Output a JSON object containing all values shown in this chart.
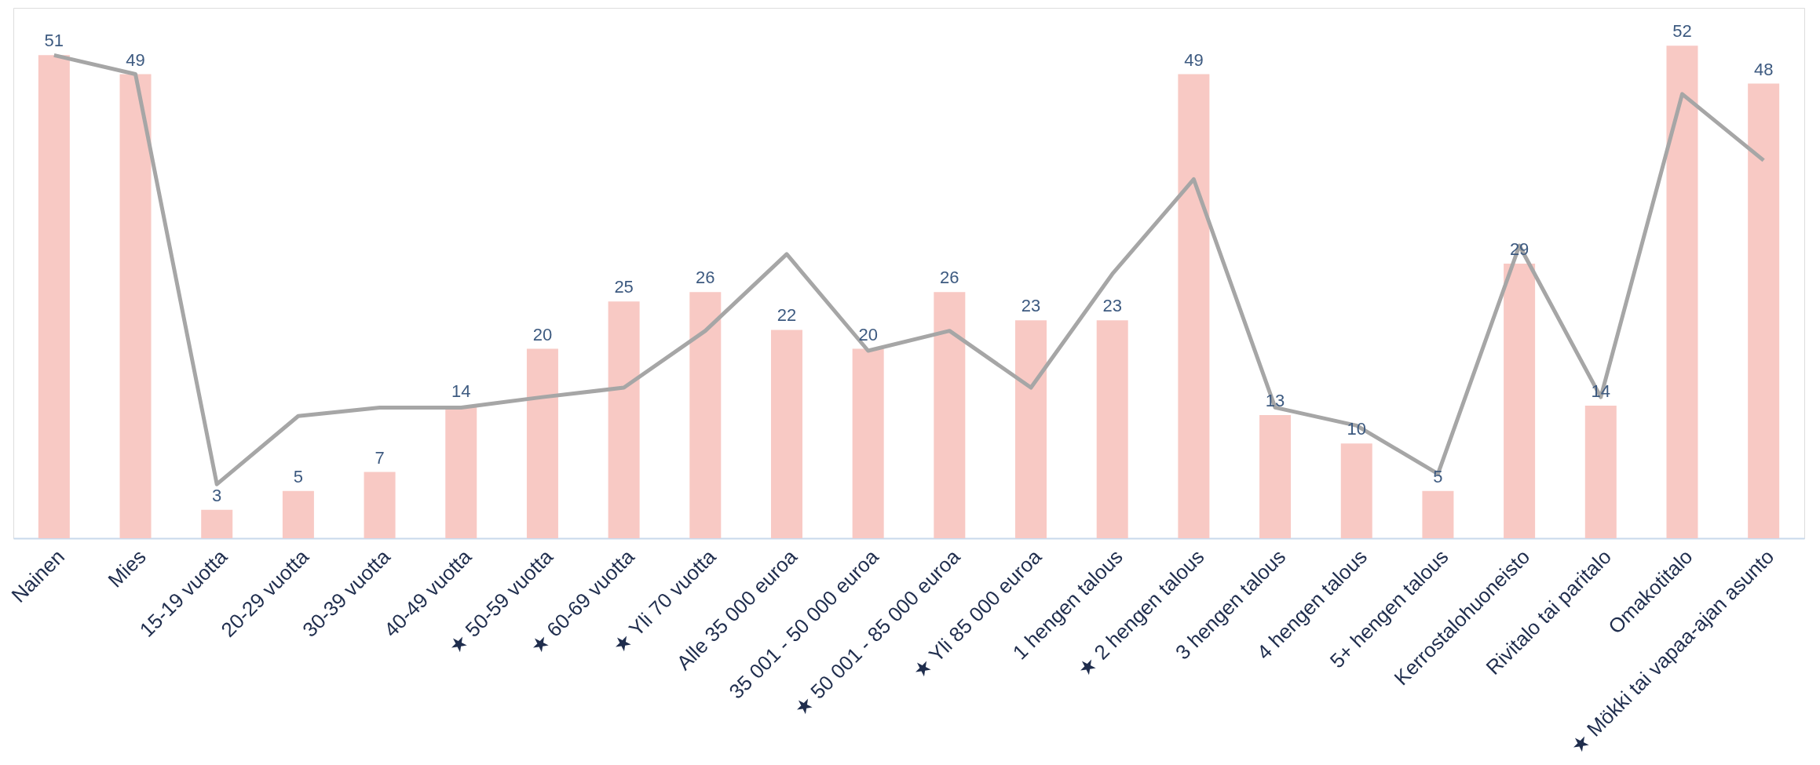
{
  "chart_data": {
    "type": "bar",
    "categories": [
      "Nainen",
      "Mies",
      "15-19 vuotta",
      "20-29 vuotta",
      "30-39 vuotta",
      "40-49 vuotta",
      "★ 50-59 vuotta",
      "★ 60-69 vuotta",
      "★ Yli 70 vuotta",
      "Alle 35 000 euroa",
      "35 001 - 50 000 euroa",
      "★ 50 001 - 85 000 euroa",
      "★ Yli 85 000 euroa",
      "1 hengen talous",
      "★ 2 hengen talous",
      "3 hengen talous",
      "4 hengen talous",
      "5+ hengen talous",
      "Kerrostalohuoneisto",
      "Rivitalo tai paritalo",
      "Omakotitalo",
      "★ Mökki tai vapaa-ajan asunto"
    ],
    "series": [
      {
        "color": "#f8c9c4",
        "values": [
          51,
          49,
          3,
          5,
          7,
          14,
          20,
          25,
          26,
          22,
          20,
          26,
          23,
          23,
          49,
          13,
          10,
          5,
          29,
          14,
          52,
          48
        ],
        "value_labels": [
          "51",
          "49",
          "3",
          "5",
          "7",
          "14",
          "20",
          "25",
          "26",
          "22",
          "20",
          "26",
          "23",
          "23",
          "49",
          "13",
          "10",
          "5",
          "29",
          "14",
          "52",
          "48"
        ]
      },
      {
        "type": "line",
        "color": "#a6a6a6",
        "values": [
          51,
          49,
          5.7,
          12.9,
          13.8,
          13.8,
          14.9,
          15.9,
          21.9,
          30,
          19.8,
          21.9,
          15.9,
          27.9,
          37.9,
          13.8,
          11.9,
          6.8,
          30.9,
          14.9,
          46.9,
          39.9
        ]
      }
    ],
    "ylim": [
      0,
      56
    ],
    "marker": "none",
    "line_style": "solid"
  }
}
